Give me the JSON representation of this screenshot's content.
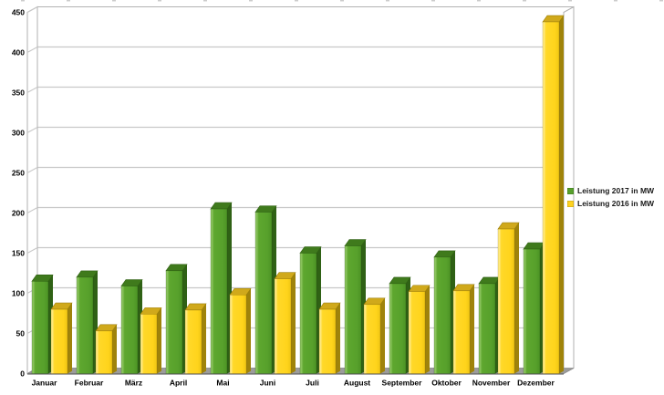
{
  "chart_data": {
    "type": "bar",
    "style": "3d-bar",
    "title": "",
    "xlabel": "",
    "ylabel": "",
    "categories": [
      "Januar",
      "Februar",
      "März",
      "April",
      "Mai",
      "Juni",
      "Juli",
      "August",
      "September",
      "Oktober",
      "November",
      "Dezember"
    ],
    "series": [
      {
        "name": "Leistung 2017 in MW",
        "color": "#57A02C",
        "values": [
          115,
          120,
          109,
          128,
          205,
          201,
          150,
          159,
          112,
          145,
          112,
          155
        ]
      },
      {
        "name": "Leistung 2016 in MW",
        "color": "#FFD320",
        "values": [
          80,
          53,
          74,
          79,
          98,
          118,
          80,
          86,
          102,
          103,
          180,
          438
        ]
      }
    ],
    "ylim": [
      0,
      450
    ],
    "ytick_step": 50,
    "y_tick_labels": [
      "0",
      "50",
      "100",
      "150",
      "200",
      "250",
      "300",
      "350",
      "400",
      "450"
    ],
    "grid": true,
    "legend_position": "right"
  }
}
